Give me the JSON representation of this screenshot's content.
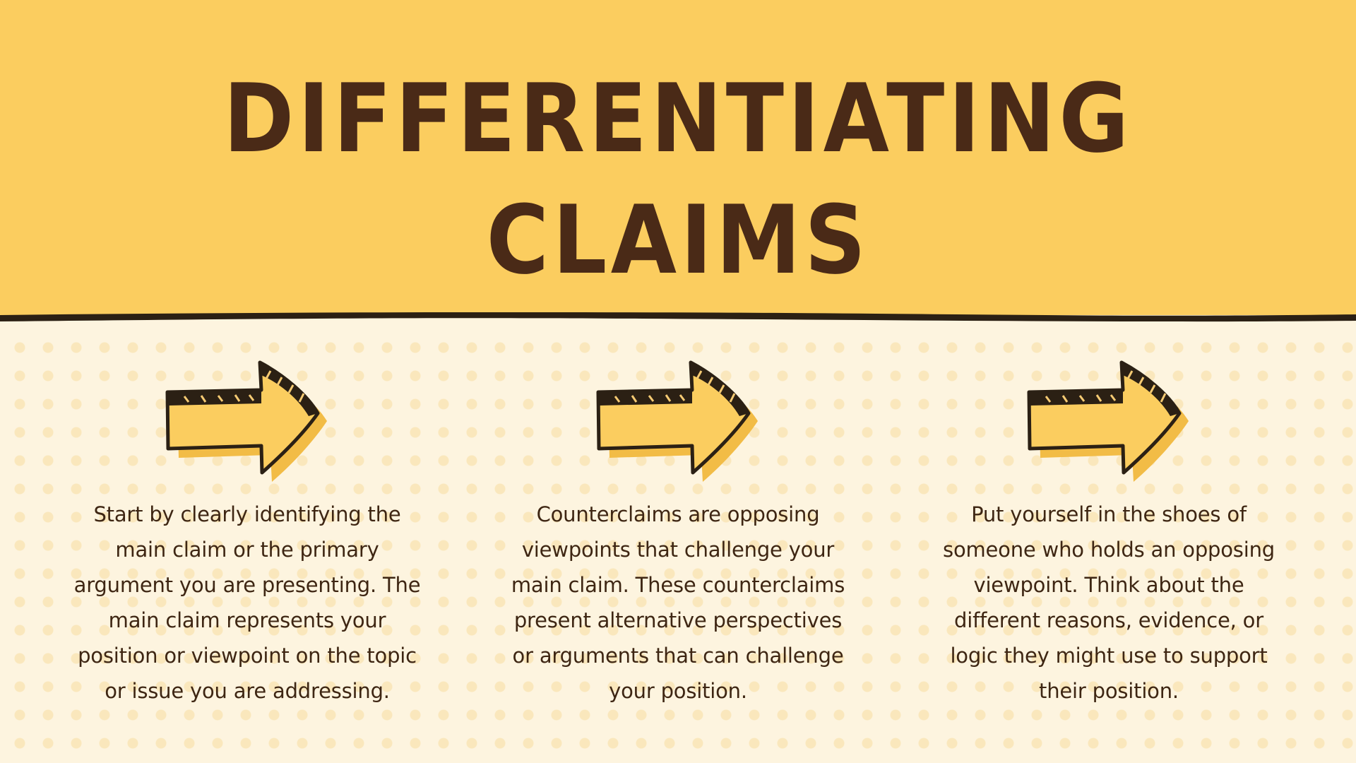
{
  "title": {
    "line1": "DIFFERENTIATING",
    "line2": "CLAIMS"
  },
  "colors": {
    "header_background": "#fbcd5f",
    "body_background": "#fdf4df",
    "text_brown": "#4a2a17",
    "arrow_fill": "#fbcd5f"
  },
  "cards": [
    {
      "icon": "right-arrow-icon",
      "text": "Start by clearly identifying the main claim or the primary argument you are presenting. The main claim represents your position or viewpoint on the topic or issue you are addressing."
    },
    {
      "icon": "right-arrow-icon",
      "text": "Counterclaims are opposing viewpoints that challenge your main claim. These counterclaims present alternative perspectives or arguments that can challenge your position."
    },
    {
      "icon": "right-arrow-icon",
      "text": "Put yourself in the shoes of someone who holds an opposing viewpoint. Think about the different reasons, evidence, or logic they might use to support their position."
    }
  ]
}
